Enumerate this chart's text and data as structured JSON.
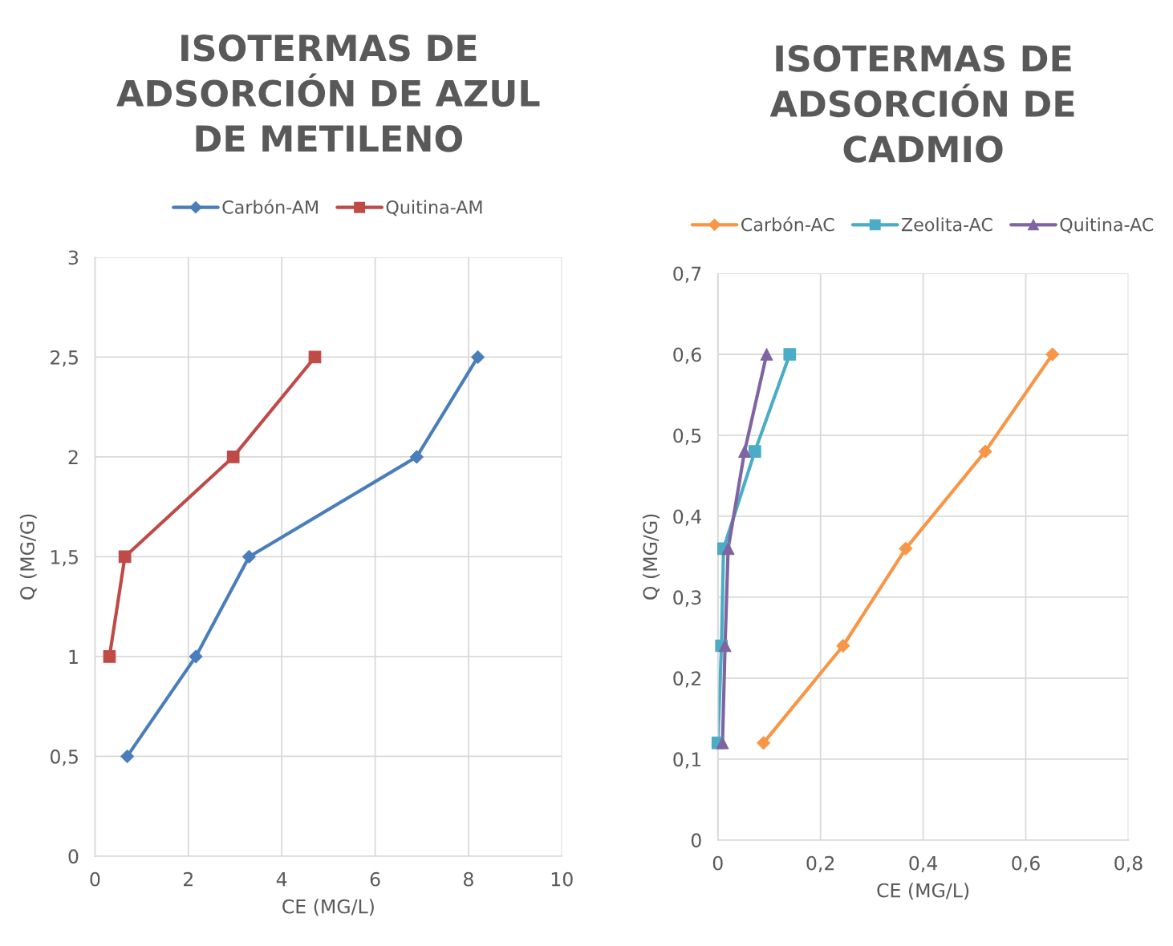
{
  "chart_data": [
    {
      "type": "line",
      "title": "ISOTERMAS DE\nADSORCIÓN DE AZUL\nDE METILENO",
      "xlabel": "CE (MG/L)",
      "ylabel": "Q (MG/G)",
      "xlim": [
        0,
        10
      ],
      "xticks": [
        0,
        2,
        4,
        6,
        8,
        10
      ],
      "ylim": [
        0,
        3
      ],
      "yticks": [
        0,
        {
          "value": 0.5,
          "label": "0,5"
        },
        1,
        {
          "value": 1.5,
          "label": "1,5"
        },
        2,
        {
          "value": 2.5,
          "label": "2,5"
        },
        3
      ],
      "grid": true,
      "legend": "top",
      "line_style": "solid",
      "series": [
        {
          "name": "Carbón-AM",
          "color": "#4a7ebb",
          "marker": "diamond",
          "x": [
            0.69,
            2.16,
            3.3,
            6.89,
            8.2
          ],
          "values": [
            0.5,
            1,
            1.5,
            2,
            2.5
          ]
        },
        {
          "name": "Quitina-AM",
          "color": "#be4b48",
          "marker": "square",
          "x": [
            0.31,
            0.64,
            2.96,
            4.71
          ],
          "values": [
            1,
            1.5,
            2,
            2.5
          ]
        }
      ]
    },
    {
      "type": "line",
      "title": "ISOTERMAS DE\nADSORCIÓN DE\nCADMIO",
      "xlabel": "CE (MG/L)",
      "ylabel": "Q (MG/G)",
      "xlim": [
        0,
        0.8
      ],
      "xticks": [
        0,
        {
          "value": 0.2,
          "label": "0,2"
        },
        {
          "value": 0.4,
          "label": "0,4"
        },
        {
          "value": 0.6,
          "label": "0,6"
        },
        {
          "value": 0.8,
          "label": "0,8"
        }
      ],
      "ylim": [
        0,
        0.7
      ],
      "yticks": [
        0,
        {
          "value": 0.1,
          "label": "0,1"
        },
        {
          "value": 0.2,
          "label": "0,2"
        },
        {
          "value": 0.3,
          "label": "0,3"
        },
        {
          "value": 0.4,
          "label": "0,4"
        },
        {
          "value": 0.5,
          "label": "0,5"
        },
        {
          "value": 0.6,
          "label": "0,6"
        },
        {
          "value": 0.7,
          "label": "0,7"
        }
      ],
      "grid": true,
      "legend": "top",
      "line_style": "solid",
      "series": [
        {
          "name": "Carbón-AC",
          "color": "#f79646",
          "marker": "diamond",
          "x": [
            0.089,
            0.244,
            0.366,
            0.521,
            0.652
          ],
          "values": [
            0.12,
            0.24,
            0.36,
            0.48,
            0.6
          ]
        },
        {
          "name": "Zeolita-AC",
          "color": "#4bacc6",
          "marker": "square",
          "x": [
            0.0,
            0.007,
            0.011,
            0.072,
            0.14
          ],
          "values": [
            0.12,
            0.24,
            0.36,
            0.48,
            0.6
          ]
        },
        {
          "name": "Quitina-AC",
          "color": "#8064a2",
          "marker": "triangle",
          "x": [
            0.009,
            0.014,
            0.02,
            0.052,
            0.095
          ],
          "values": [
            0.12,
            0.24,
            0.36,
            0.48,
            0.6
          ]
        }
      ]
    }
  ]
}
